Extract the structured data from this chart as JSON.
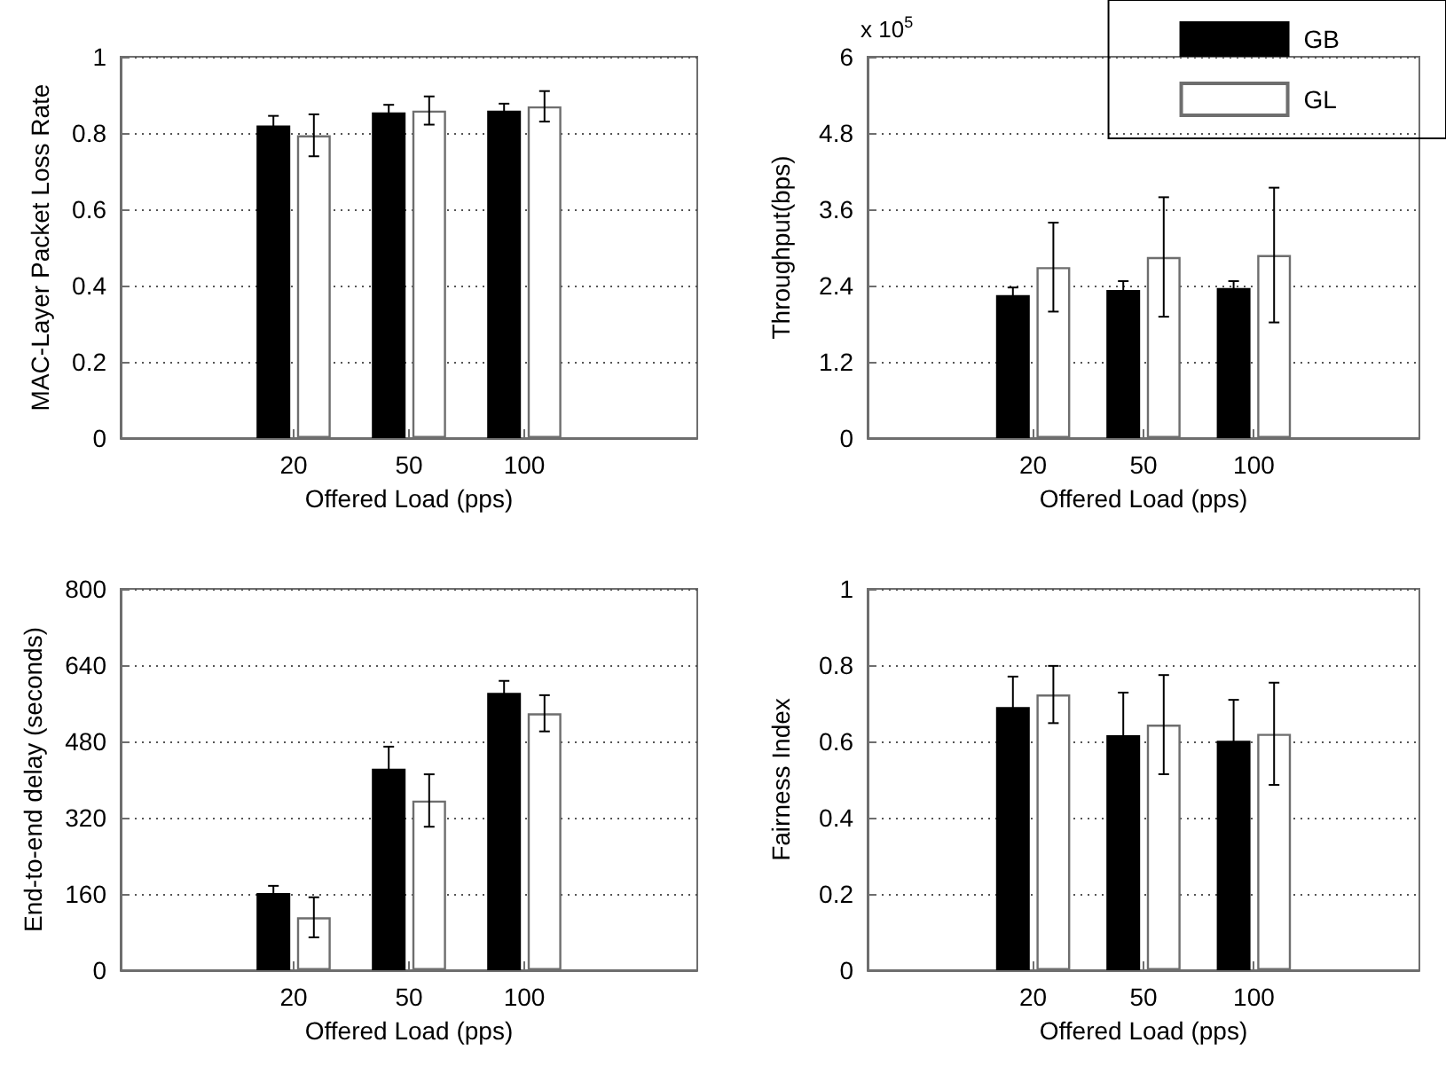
{
  "chart_data": [
    {
      "type": "bar",
      "categories": [
        null,
        "20",
        "50",
        "100",
        null
      ],
      "xlabel": "Offered Load (pps)",
      "ylabel": "MAC-Layer Packet Loss Rate",
      "ylim": [
        0,
        1
      ],
      "yticks": [
        0,
        0.2,
        0.4,
        0.6,
        0.8,
        1
      ],
      "grid": "y",
      "series": [
        {
          "color": "#000000",
          "values": [
            null,
            0.82,
            0.854,
            0.859,
            null
          ],
          "errors": [
            null,
            0.025,
            0.02,
            0.018,
            null
          ]
        },
        {
          "color": "#ffffff",
          "values": [
            null,
            0.794,
            0.859,
            0.87,
            null
          ],
          "errors": [
            null,
            0.055,
            0.037,
            0.04,
            null
          ]
        }
      ]
    },
    {
      "type": "bar",
      "categories": [
        null,
        "20",
        "50",
        "100",
        null
      ],
      "xlabel": "Offered Load (pps)",
      "ylabel": "Throughput(bps)",
      "ylim": [
        0,
        6
      ],
      "yticks": [
        0,
        1.2,
        2.4,
        3.6,
        4.8,
        6
      ],
      "grid": "y",
      "legend": "top right",
      "annotations": [
        "x 10$^{5}$"
      ],
      "series": [
        {
          "name": "GB",
          "color": "#000000",
          "values": [
            null,
            2.25,
            2.33,
            2.36,
            null
          ],
          "errors": [
            null,
            0.12,
            0.14,
            0.11,
            null
          ]
        },
        {
          "name": "GL",
          "color": "#ffffff",
          "values": [
            null,
            2.69,
            2.85,
            2.88,
            null
          ],
          "errors": [
            null,
            0.7,
            0.94,
            1.06,
            null
          ]
        }
      ]
    },
    {
      "type": "bar",
      "categories": [
        null,
        "20",
        "50",
        "100",
        null
      ],
      "xlabel": "Offered Load (pps)",
      "ylabel": "End-to-end delay (seconds)",
      "ylim": [
        0,
        800
      ],
      "yticks": [
        0,
        160,
        320,
        480,
        640,
        800
      ],
      "grid": "y",
      "series": [
        {
          "color": "#000000",
          "values": [
            null,
            162,
            423,
            582,
            null
          ],
          "errors": [
            null,
            15,
            46,
            25,
            null
          ]
        },
        {
          "color": "#ffffff",
          "values": [
            null,
            111,
            356,
            539,
            null
          ],
          "errors": [
            null,
            42,
            55,
            38,
            null
          ]
        }
      ]
    },
    {
      "type": "bar",
      "categories": [
        null,
        "20",
        "50",
        "100",
        null
      ],
      "xlabel": "Offered Load (pps)",
      "ylabel": "Fairness Index",
      "ylim": [
        0,
        1
      ],
      "yticks": [
        0,
        0.2,
        0.4,
        0.6,
        0.8,
        1
      ],
      "grid": "y",
      "series": [
        {
          "color": "#000000",
          "values": [
            null,
            0.69,
            0.616,
            0.602,
            null
          ],
          "errors": [
            null,
            0.08,
            0.112,
            0.107,
            null
          ]
        },
        {
          "color": "#ffffff",
          "values": [
            null,
            0.723,
            0.644,
            0.62,
            null
          ],
          "errors": [
            null,
            0.075,
            0.13,
            0.134,
            null
          ]
        }
      ]
    }
  ]
}
